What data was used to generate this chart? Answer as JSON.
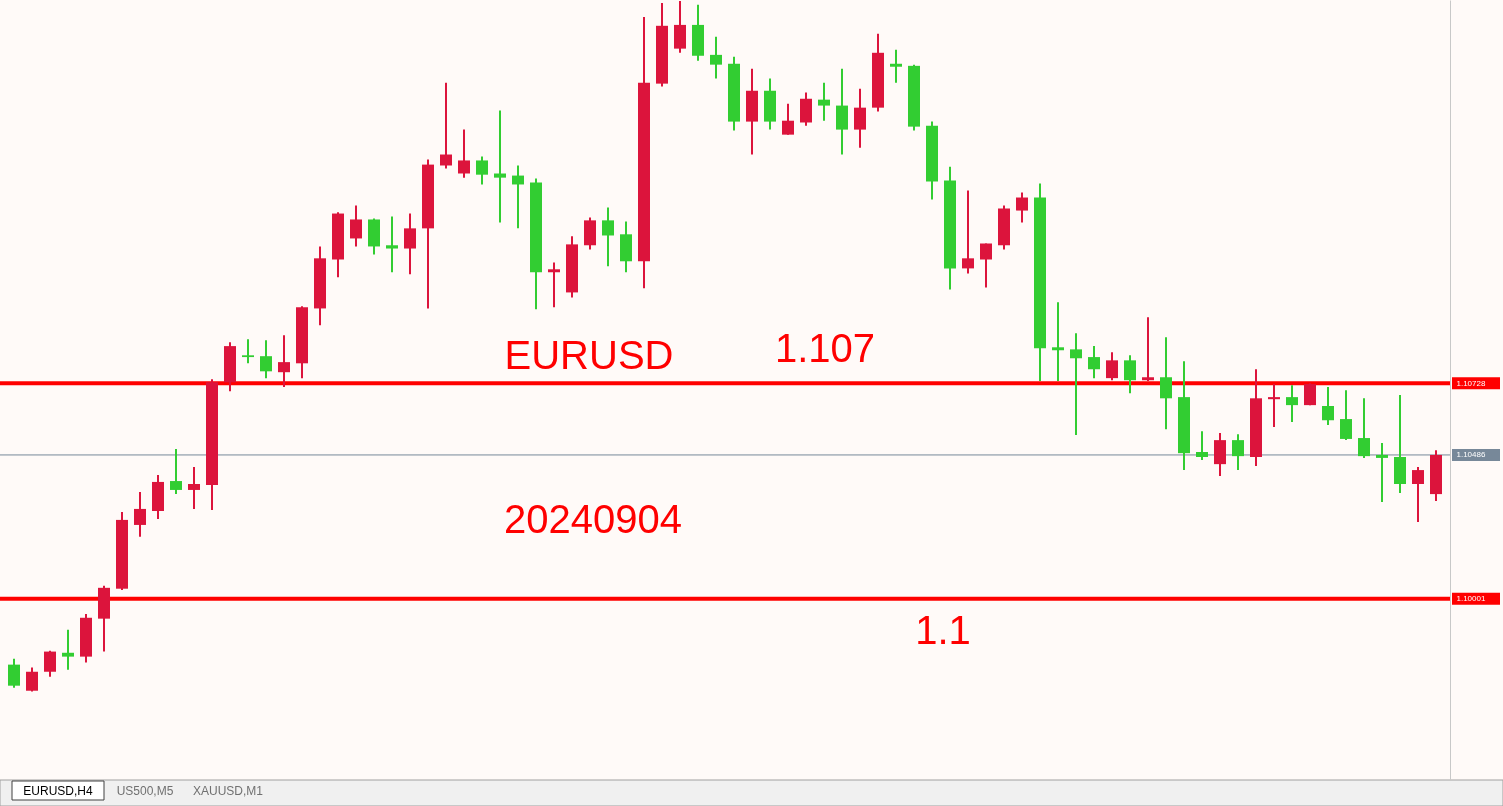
{
  "chart_data": {
    "type": "candlestick",
    "categories": [
      null,
      null,
      null,
      null,
      null,
      null,
      null,
      null,
      null,
      null,
      null,
      null,
      null,
      null,
      null,
      null,
      null,
      null,
      null,
      null,
      null,
      null,
      null,
      null,
      null,
      null,
      null,
      null,
      null,
      null,
      null,
      null,
      null,
      null,
      null,
      null,
      null,
      null,
      null,
      null,
      null,
      null,
      null,
      null,
      null,
      null,
      null,
      null,
      null,
      null,
      null,
      null,
      null,
      null,
      null,
      null,
      null,
      null,
      null,
      null,
      null,
      null,
      null,
      null,
      null,
      null,
      null,
      null,
      null,
      null,
      null,
      null,
      null,
      null,
      null,
      null,
      null,
      null,
      null,
      null
    ],
    "ohlc": [
      [
        1.09779,
        1.09799,
        1.09701,
        1.09708
      ],
      [
        1.09691,
        1.09769,
        1.09688,
        1.09755
      ],
      [
        1.09755,
        1.09826,
        1.09738,
        1.09823
      ],
      [
        1.09819,
        1.09897,
        1.09762,
        1.09806
      ],
      [
        1.09806,
        1.0995,
        1.09786,
        1.09937
      ],
      [
        1.09934,
        1.10045,
        1.09823,
        1.10038
      ],
      [
        1.10035,
        1.10294,
        1.10031,
        1.10267
      ],
      [
        1.1025,
        1.10361,
        1.1021,
        1.10304
      ],
      [
        1.10297,
        1.10418,
        1.1027,
        1.10395
      ],
      [
        1.10398,
        1.10506,
        1.10354,
        1.10368
      ],
      [
        1.10368,
        1.10445,
        1.10304,
        1.10388
      ],
      [
        1.10385,
        1.10741,
        1.103,
        1.10731
      ],
      [
        1.10731,
        1.10866,
        1.10701,
        1.10853
      ],
      [
        1.10822,
        1.10876,
        1.10795,
        1.10816
      ],
      [
        1.10819,
        1.10873,
        1.10745,
        1.10768
      ],
      [
        1.10765,
        1.1089,
        1.10715,
        1.10799
      ],
      [
        1.10795,
        1.10987,
        1.10745,
        1.10984
      ],
      [
        1.1098,
        1.11189,
        1.10923,
        1.11149
      ],
      [
        1.11145,
        1.11304,
        1.11085,
        1.113
      ],
      [
        1.11216,
        1.11327,
        1.11189,
        1.1128
      ],
      [
        1.1128,
        1.11283,
        1.11162,
        1.11189
      ],
      [
        1.11193,
        1.1129,
        1.11102,
        1.11182
      ],
      [
        1.11182,
        1.113,
        1.11095,
        1.1125
      ],
      [
        1.1125,
        1.11482,
        1.1098,
        1.11465
      ],
      [
        1.11462,
        1.11741,
        1.11452,
        1.11499
      ],
      [
        1.11435,
        1.11583,
        1.11421,
        1.11479
      ],
      [
        1.11479,
        1.11492,
        1.11398,
        1.11431
      ],
      [
        1.11435,
        1.11647,
        1.1127,
        1.11421
      ],
      [
        1.11428,
        1.11462,
        1.1125,
        1.11398
      ],
      [
        1.11405,
        1.11418,
        1.10977,
        1.11102
      ],
      [
        1.11102,
        1.11135,
        1.10984,
        1.11112
      ],
      [
        1.11034,
        1.11223,
        1.11017,
        1.11196
      ],
      [
        1.11193,
        1.11287,
        1.11179,
        1.11277
      ],
      [
        1.11277,
        1.1132,
        1.11122,
        1.11226
      ],
      [
        1.1123,
        1.11273,
        1.11102,
        1.11139
      ],
      [
        1.11139,
        1.11963,
        1.11048,
        1.11741
      ],
      [
        1.11738,
        1.1201,
        1.11728,
        1.11933
      ],
      [
        1.11856,
        1.12017,
        1.11842,
        1.11936
      ],
      [
        1.11936,
        1.12004,
        1.11815,
        1.11832
      ],
      [
        1.11835,
        1.11896,
        1.11755,
        1.11802
      ],
      [
        1.11805,
        1.11829,
        1.1158,
        1.1161
      ],
      [
        1.1161,
        1.11788,
        1.11499,
        1.11714
      ],
      [
        1.11714,
        1.11755,
        1.11583,
        1.1161
      ],
      [
        1.11566,
        1.1167,
        1.11566,
        1.11613
      ],
      [
        1.11607,
        1.11708,
        1.11596,
        1.11687
      ],
      [
        1.11684,
        1.11741,
        1.11613,
        1.11664
      ],
      [
        1.11664,
        1.11788,
        1.11499,
        1.11583
      ],
      [
        1.11583,
        1.11721,
        1.11522,
        1.11657
      ],
      [
        1.11657,
        1.11906,
        1.11644,
        1.11842
      ],
      [
        1.11805,
        1.11852,
        1.11741,
        1.11795
      ],
      [
        1.11798,
        1.11802,
        1.1158,
        1.11593
      ],
      [
        1.11596,
        1.1161,
        1.11347,
        1.11408
      ],
      [
        1.11411,
        1.11458,
        1.11044,
        1.11115
      ],
      [
        1.11115,
        1.11378,
        1.11098,
        1.11149
      ],
      [
        1.11145,
        1.11199,
        1.11051,
        1.11199
      ],
      [
        1.11193,
        1.11327,
        1.11179,
        1.11317
      ],
      [
        1.1131,
        1.11371,
        1.1127,
        1.11354
      ],
      [
        1.11354,
        1.11401,
        1.10735,
        1.10846
      ],
      [
        1.10849,
        1.11001,
        1.10735,
        1.10839
      ],
      [
        1.10842,
        1.10896,
        1.10553,
        1.10812
      ],
      [
        1.10816,
        1.10853,
        1.10745,
        1.10775
      ],
      [
        1.10745,
        1.10832,
        1.10738,
        1.10805
      ],
      [
        1.10805,
        1.10822,
        1.10694,
        1.10738
      ],
      [
        1.10738,
        1.1095,
        1.10735,
        1.10748
      ],
      [
        1.10748,
        1.10883,
        1.10573,
        1.10677
      ],
      [
        1.10681,
        1.10802,
        1.10435,
        1.10492
      ],
      [
        1.10496,
        1.10566,
        1.10469,
        1.10479
      ],
      [
        1.10455,
        1.1056,
        1.10415,
        1.10536
      ],
      [
        1.10536,
        1.10556,
        1.10435,
        1.10482
      ],
      [
        1.10479,
        1.10775,
        1.10449,
        1.10677
      ],
      [
        1.10674,
        1.10725,
        1.1058,
        1.10681
      ],
      [
        1.10681,
        1.10721,
        1.10597,
        1.10654
      ],
      [
        1.10654,
        1.10728,
        1.10654,
        1.10725
      ],
      [
        1.10651,
        1.10715,
        1.10587,
        1.10603
      ],
      [
        1.10607,
        1.10704,
        1.10536,
        1.1054
      ],
      [
        1.10543,
        1.10677,
        1.10476,
        1.10482
      ],
      [
        1.10486,
        1.10526,
        1.10327,
        1.10476
      ],
      [
        1.10479,
        1.10688,
        1.10358,
        1.10388
      ],
      [
        1.10388,
        1.10445,
        1.1026,
        1.10435
      ],
      [
        1.10354,
        1.10502,
        1.10331,
        1.10486
      ]
    ],
    "colors": [
      "#32cd32",
      "#dc143c",
      "#dc143c",
      "#32cd32",
      "#dc143c",
      "#dc143c",
      "#dc143c",
      "#dc143c",
      "#dc143c",
      "#32cd32",
      "#dc143c",
      "#dc143c",
      "#dc143c",
      "#32cd32",
      "#32cd32",
      "#dc143c",
      "#dc143c",
      "#dc143c",
      "#dc143c",
      "#dc143c",
      "#32cd32",
      "#32cd32",
      "#dc143c",
      "#dc143c",
      "#dc143c",
      "#dc143c",
      "#32cd32",
      "#32cd32",
      "#32cd32",
      "#32cd32",
      "#dc143c",
      "#dc143c",
      "#dc143c",
      "#32cd32",
      "#32cd32",
      "#dc143c",
      "#dc143c",
      "#dc143c",
      "#32cd32",
      "#32cd32",
      "#32cd32",
      "#dc143c",
      "#32cd32",
      "#dc143c",
      "#dc143c",
      "#32cd32",
      "#32cd32",
      "#dc143c",
      "#dc143c",
      "#32cd32",
      "#32cd32",
      "#32cd32",
      "#32cd32",
      "#dc143c",
      "#dc143c",
      "#dc143c",
      "#dc143c",
      "#32cd32",
      "#32cd32",
      "#32cd32",
      "#32cd32",
      "#dc143c",
      "#32cd32",
      "#dc143c",
      "#32cd32",
      "#32cd32",
      "#32cd32",
      "#dc143c",
      "#32cd32",
      "#dc143c",
      "#dc143c",
      "#32cd32",
      "#dc143c",
      "#32cd32",
      "#32cd32",
      "#32cd32",
      "#32cd32",
      "#32cd32",
      "#dc143c",
      "#dc143c"
    ],
    "ylim": [
      1.0939,
      1.1202
    ],
    "yticks": [
      1.10001,
      1.10486,
      1.10728
    ],
    "tick_labels": "y",
    "ref_lines": [
      {
        "axis": "y",
        "value": 1.10728,
        "color": "#ff0000"
      },
      {
        "axis": "y",
        "value": 1.10486,
        "color": "#778899"
      },
      {
        "axis": "y",
        "value": 1.10001,
        "color": "#ff0000"
      }
    ],
    "annotations": [
      "EURUSD",
      "1.107",
      "20240904",
      "1.1",
      "EURUSD,H4",
      "US500,M5",
      "XAUUSD,M1"
    ]
  }
}
